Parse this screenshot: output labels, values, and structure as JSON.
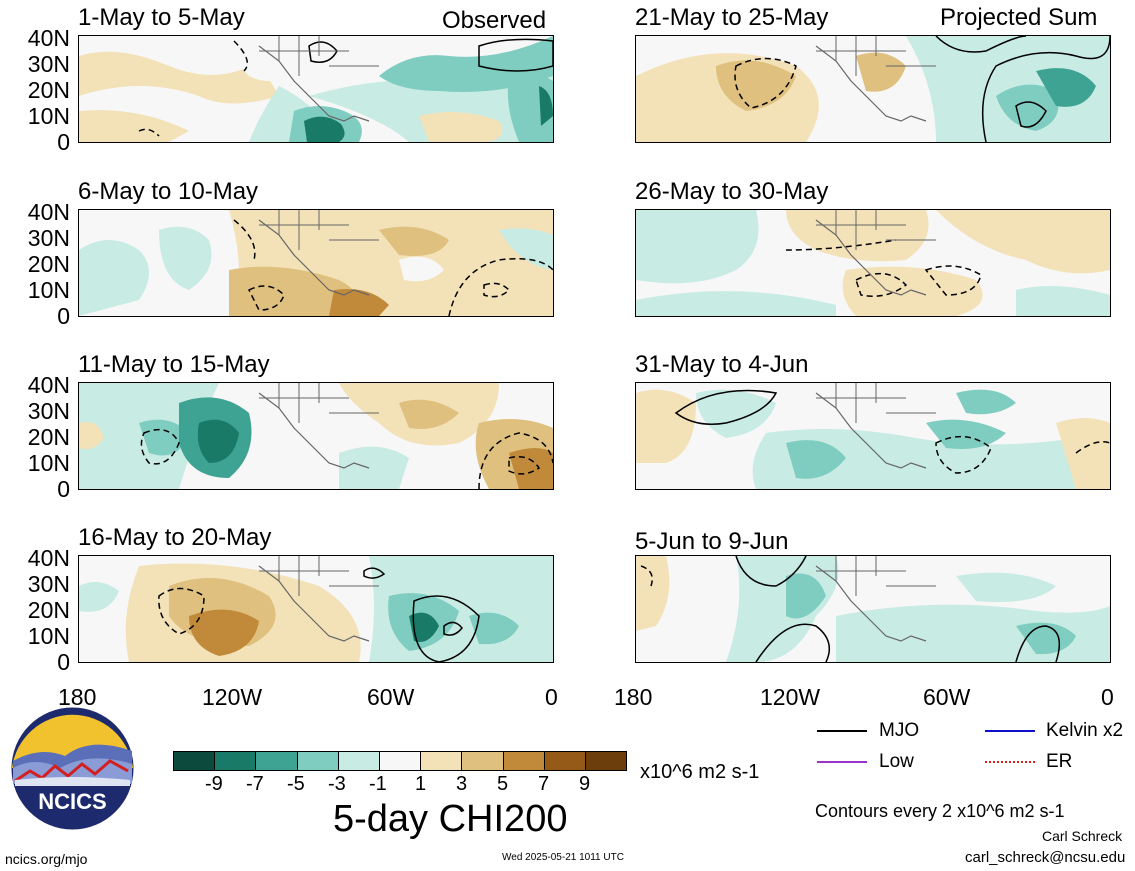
{
  "panels_left": [
    {
      "label": "1-May to 5-May",
      "tag": "Observed"
    },
    {
      "label": "6-May to 10-May",
      "tag": ""
    },
    {
      "label": "11-May to 15-May",
      "tag": ""
    },
    {
      "label": "16-May to 20-May",
      "tag": ""
    }
  ],
  "panels_right": [
    {
      "label": "21-May to 25-May",
      "tag": "Projected Sum"
    },
    {
      "label": "26-May to 30-May",
      "tag": ""
    },
    {
      "label": "31-May to 4-Jun",
      "tag": ""
    },
    {
      "label": "5-Jun to 9-Jun",
      "tag": ""
    }
  ],
  "y_ticks": [
    "40N",
    "30N",
    "20N",
    "10N",
    "0"
  ],
  "x_ticks": [
    "180",
    "120W",
    "60W",
    "0"
  ],
  "colorbar": {
    "colors": [
      "#0d4a3e",
      "#1a7a68",
      "#3fa394",
      "#7fcdc0",
      "#c8ebe4",
      "#f7f7f7",
      "#f3e2b8",
      "#dfc07e",
      "#c08a3a",
      "#965a18",
      "#6b3e0c"
    ],
    "ticks": [
      "-9",
      "-7",
      "-5",
      "-3",
      "-1",
      "1",
      "3",
      "5",
      "7",
      "9"
    ],
    "unit": "x10^6 m2 s-1"
  },
  "title": "5-day CHI200",
  "legend": [
    {
      "label": "MJO",
      "color": "#000000"
    },
    {
      "label": "Kelvin x2",
      "color": "#1010cc"
    },
    {
      "label": "Low",
      "color": "#9933cc"
    },
    {
      "label": "ER",
      "color": "#dd2222"
    }
  ],
  "contour_note": "Contours every 2 x10^6 m2 s-1",
  "author": "Carl Schreck",
  "email": "carl_schreck@ncsu.edu",
  "website": "ncics.org/mjo",
  "timestamp": "Wed 2025-05-21 1011 UTC",
  "logo_text": "NCICS"
}
